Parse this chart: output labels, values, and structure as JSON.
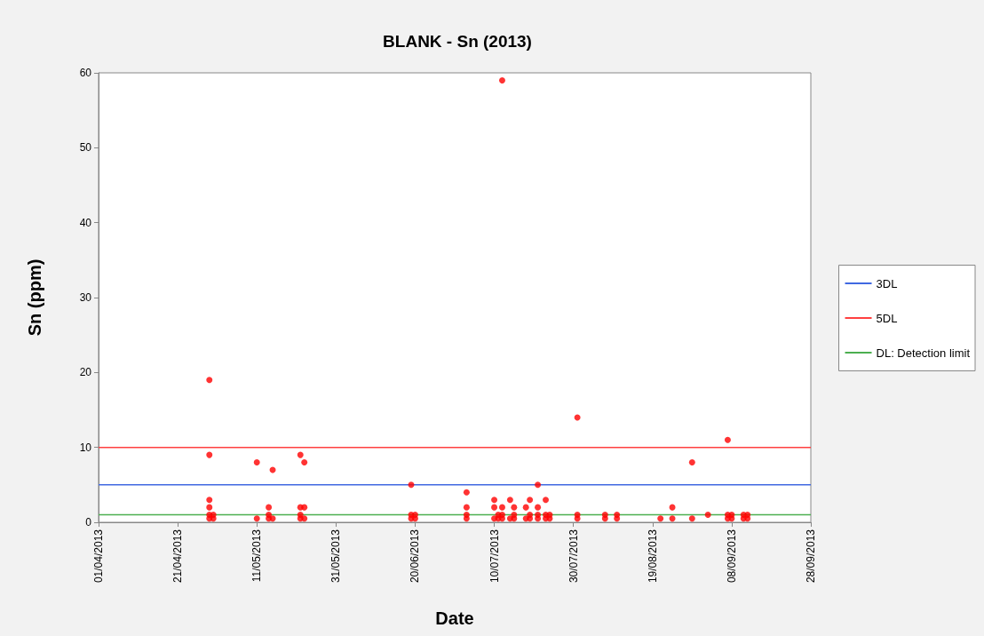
{
  "chart_data": {
    "type": "scatter",
    "title": "BLANK - Sn (2013)",
    "xlabel": "Date",
    "ylabel": "Sn (ppm)",
    "xlim": [
      "2013-04-01",
      "2013-09-28"
    ],
    "xticks": [
      {
        "value": "2013-04-01",
        "label": "01/04/2013"
      },
      {
        "value": "2013-04-21",
        "label": "21/04/2013"
      },
      {
        "value": "2013-05-11",
        "label": "11/05/2013"
      },
      {
        "value": "2013-05-31",
        "label": "31/05/2013"
      },
      {
        "value": "2013-06-20",
        "label": "20/06/2013"
      },
      {
        "value": "2013-07-10",
        "label": "10/07/2013"
      },
      {
        "value": "2013-07-30",
        "label": "30/07/2013"
      },
      {
        "value": "2013-08-19",
        "label": "19/08/2013"
      },
      {
        "value": "2013-09-08",
        "label": "08/09/2013"
      },
      {
        "value": "2013-09-28",
        "label": "28/09/2013"
      }
    ],
    "ylim": [
      0,
      60
    ],
    "yticks": [
      0,
      10,
      20,
      30,
      40,
      50,
      60
    ],
    "marker": "circle",
    "legend": "right",
    "series": [
      {
        "color": "#ff0000",
        "x": [
          "2013-04-29",
          "2013-04-29",
          "2013-04-29",
          "2013-04-29",
          "2013-04-29",
          "2013-04-29",
          "2013-04-30",
          "2013-04-30",
          "2013-05-11",
          "2013-05-11",
          "2013-05-14",
          "2013-05-14",
          "2013-05-14",
          "2013-05-15",
          "2013-05-15",
          "2013-05-22",
          "2013-05-22",
          "2013-05-22",
          "2013-05-22",
          "2013-05-23",
          "2013-05-23",
          "2013-05-23",
          "2013-06-19",
          "2013-06-19",
          "2013-06-19",
          "2013-06-20",
          "2013-06-20",
          "2013-07-03",
          "2013-07-03",
          "2013-07-03",
          "2013-07-03",
          "2013-07-10",
          "2013-07-10",
          "2013-07-10",
          "2013-07-11",
          "2013-07-11",
          "2013-07-12",
          "2013-07-12",
          "2013-07-12",
          "2013-07-12",
          "2013-07-14",
          "2013-07-14",
          "2013-07-15",
          "2013-07-15",
          "2013-07-15",
          "2013-07-18",
          "2013-07-18",
          "2013-07-19",
          "2013-07-19",
          "2013-07-19",
          "2013-07-21",
          "2013-07-21",
          "2013-07-21",
          "2013-07-21",
          "2013-07-23",
          "2013-07-23",
          "2013-07-23",
          "2013-07-24",
          "2013-07-24",
          "2013-07-31",
          "2013-07-31",
          "2013-07-31",
          "2013-08-07",
          "2013-08-07",
          "2013-08-10",
          "2013-08-10",
          "2013-08-21",
          "2013-08-24",
          "2013-08-24",
          "2013-08-29",
          "2013-08-29",
          "2013-09-02",
          "2013-09-07",
          "2013-09-07",
          "2013-09-07",
          "2013-09-08",
          "2013-09-08",
          "2013-09-11",
          "2013-09-11",
          "2013-09-12",
          "2013-09-12"
        ],
        "values": [
          19,
          9,
          3,
          2,
          1,
          0.5,
          1,
          0.5,
          8,
          0.5,
          2,
          1,
          0.5,
          7,
          0.5,
          9,
          2,
          1,
          0.5,
          8,
          2,
          0.5,
          5,
          1,
          0.5,
          1,
          0.5,
          4,
          2,
          1,
          0.5,
          3,
          2,
          0.5,
          1,
          0.5,
          59,
          2,
          1,
          0.5,
          3,
          0.5,
          2,
          1,
          0.5,
          2,
          0.5,
          3,
          1,
          0.5,
          5,
          2,
          1,
          0.5,
          3,
          1,
          0.5,
          1,
          0.5,
          14,
          1,
          0.5,
          1,
          0.5,
          1,
          0.5,
          0.5,
          2,
          0.5,
          8,
          0.5,
          1,
          11,
          1,
          0.5,
          1,
          0.5,
          1,
          0.5,
          1,
          0.5
        ]
      }
    ],
    "ref_lines": [
      {
        "axis": "y",
        "value": 5,
        "label": "3DL",
        "color": "#4169e1"
      },
      {
        "axis": "y",
        "value": 10,
        "label": "5DL",
        "color": "#ff4040"
      },
      {
        "axis": "y",
        "value": 1,
        "label": "DL: Detection limit",
        "color": "#4caf50"
      }
    ]
  }
}
